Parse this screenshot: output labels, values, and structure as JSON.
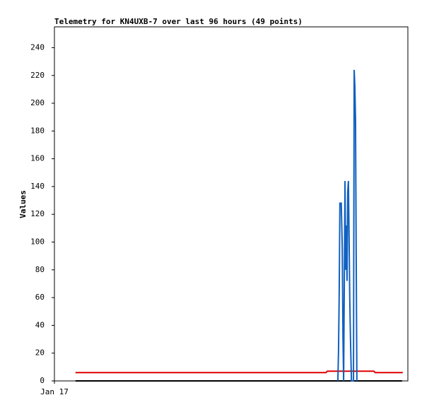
{
  "chart_data": {
    "type": "line",
    "title": "Telemetry for KN4UXB-7 over last 96 hours (49 points)",
    "y_label": "Values",
    "xlim": [
      0,
      104
    ],
    "xticks": [
      {
        "value": 0,
        "label": "Jan 17"
      }
    ],
    "ylim": [
      0,
      255
    ],
    "yticks": [
      0,
      20,
      40,
      60,
      80,
      100,
      120,
      140,
      160,
      180,
      200,
      220,
      240
    ],
    "grid": false,
    "series": [
      {
        "color": "#000000",
        "x": [
          6.2,
          102.3
        ],
        "values": [
          0,
          0
        ]
      },
      {
        "color": "#e00000",
        "x": [
          6.2,
          79.9,
          80.3,
          94.0,
          94.4,
          102.5
        ],
        "values": [
          6,
          6,
          7,
          7,
          6,
          6
        ]
      },
      {
        "color": "#1060c0",
        "x": [
          83.4,
          83.6,
          83.8,
          84.0,
          84.4,
          84.7,
          84.9,
          85.1,
          85.5,
          85.7,
          85.9,
          86.1,
          86.3,
          86.5,
          86.7,
          86.9,
          87.1,
          87.4,
          88.0,
          88.2,
          88.4,
          88.6,
          88.8,
          89.0
        ],
        "values": [
          0,
          22,
          64,
          128,
          128,
          96,
          32,
          0,
          144,
          80,
          112,
          72,
          136,
          144,
          104,
          60,
          32,
          0,
          0,
          224,
          212,
          188,
          88,
          0
        ]
      }
    ]
  }
}
